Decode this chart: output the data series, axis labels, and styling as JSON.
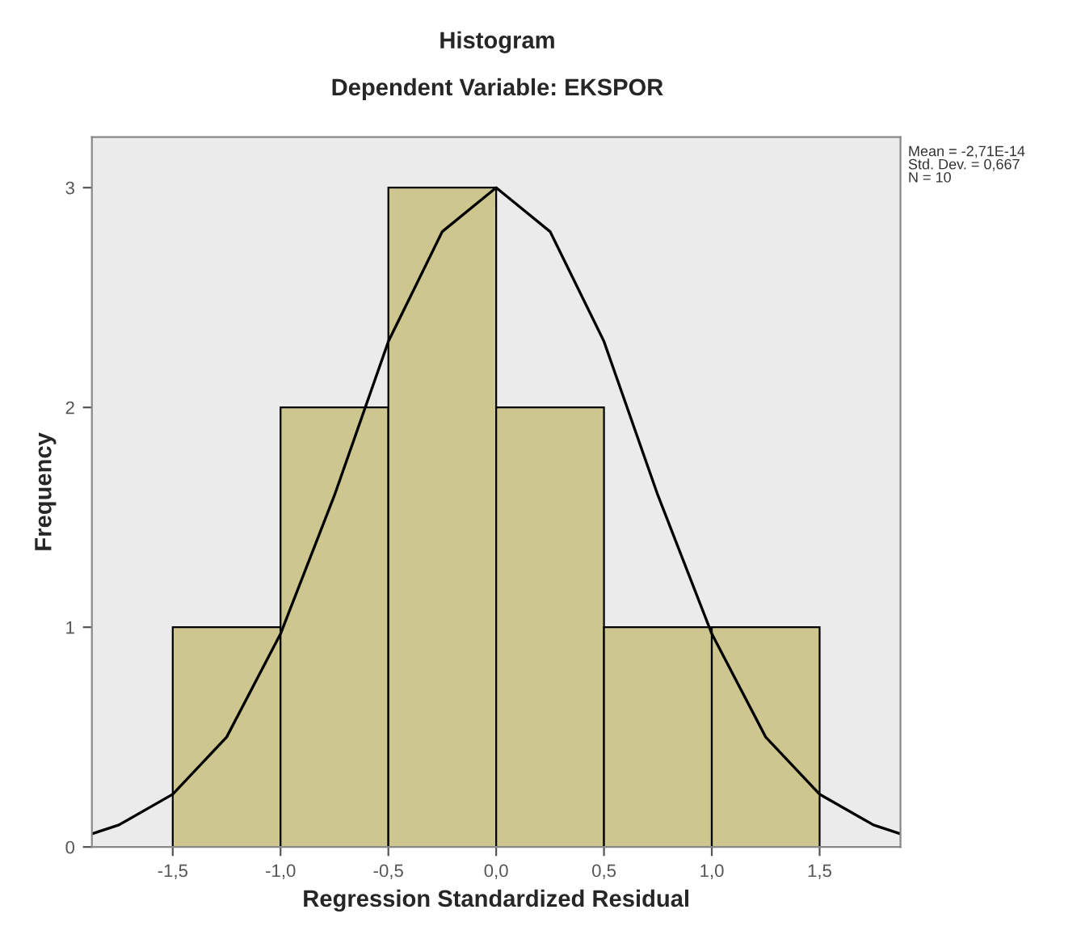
{
  "chart_data": {
    "type": "histogram",
    "title": "Histogram",
    "subtitle": "Dependent Variable: EKSPOR",
    "xlabel": "Regression Standardized Residual",
    "ylabel": "Frequency",
    "bins": [
      -1.5,
      -1.0,
      -0.5,
      0.0,
      0.5,
      1.0,
      1.5
    ],
    "values": [
      1,
      2,
      3,
      2,
      1,
      1
    ],
    "color": "#cdc68f",
    "series": [
      {
        "type": "line",
        "color": "#000000",
        "x": [
          -1.875,
          -1.75,
          -1.5,
          -1.25,
          -1.0,
          -0.75,
          -0.5,
          -0.25,
          0.0,
          0.25,
          0.5,
          0.75,
          1.0,
          1.25,
          1.5,
          1.75,
          1.875
        ],
        "values": [
          0.06,
          0.1,
          0.24,
          0.5,
          0.97,
          1.6,
          2.3,
          2.8,
          3.0,
          2.8,
          2.3,
          1.6,
          0.97,
          0.5,
          0.24,
          0.1,
          0.06
        ]
      }
    ],
    "xlim": [
      -1.875,
      1.875
    ],
    "ylim": [
      0,
      3.23
    ],
    "xticks": [
      {
        "value": -1.5,
        "label": "-1,5"
      },
      {
        "value": -1.0,
        "label": "-1,0"
      },
      {
        "value": -0.5,
        "label": "-0,5"
      },
      {
        "value": 0.0,
        "label": "0,0"
      },
      {
        "value": 0.5,
        "label": "0,5"
      },
      {
        "value": 1.0,
        "label": "1,0"
      },
      {
        "value": 1.5,
        "label": "1,5"
      }
    ],
    "yticks": [
      0,
      1,
      2,
      3
    ],
    "annotations": [
      "Mean = -2,71E-14\nStd. Dev. = 0,667\nN = 10"
    ],
    "grid": false,
    "legend": false
  }
}
